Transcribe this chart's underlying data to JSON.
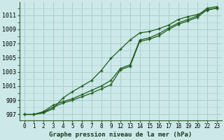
{
  "bg_color": "#cce8e8",
  "grid_color": "#aacece",
  "line_color": "#1e5c1e",
  "title": "Graphe pression niveau de la mer (hPa)",
  "ylim": [
    996.2,
    1012.8
  ],
  "yticks": [
    997,
    999,
    1001,
    1003,
    1005,
    1007,
    1009,
    1011
  ],
  "xlim": [
    -0.3,
    23.3
  ],
  "xtick_labels": [
    "0",
    "1",
    "2",
    "3",
    "4",
    "5",
    "6",
    "7",
    "8",
    "9",
    "12",
    "13",
    "14",
    "15",
    "16",
    "17",
    "18",
    "19",
    "20",
    "22",
    "23"
  ],
  "line1_hours": [
    0,
    1,
    2,
    3,
    4,
    5,
    6,
    7,
    8,
    9,
    12,
    13,
    14,
    15,
    16,
    17,
    18,
    19,
    20,
    22,
    23
  ],
  "line1_y": [
    997.0,
    997.0,
    997.3,
    998.0,
    998.6,
    999.0,
    999.5,
    1000.0,
    1000.6,
    1001.2,
    1003.3,
    1003.8,
    1007.3,
    1007.6,
    1008.1,
    1009.0,
    1009.7,
    1010.2,
    1010.7,
    1011.8,
    1012.0
  ],
  "line2_hours": [
    0,
    1,
    2,
    3,
    4,
    5,
    6,
    7,
    8,
    9,
    12,
    13,
    14,
    15,
    16,
    17,
    18,
    19,
    20,
    22,
    23
  ],
  "line2_y": [
    997.0,
    997.0,
    997.4,
    998.3,
    998.8,
    999.2,
    999.8,
    1000.4,
    1001.0,
    1001.8,
    1003.5,
    1004.0,
    1007.5,
    1007.8,
    1008.4,
    1009.2,
    1009.9,
    1010.4,
    1010.9,
    1012.0,
    1012.2
  ],
  "line3_hours": [
    0,
    1,
    2,
    3,
    4,
    5,
    6,
    7,
    8,
    9,
    12,
    13,
    14,
    15,
    16,
    17,
    18,
    19,
    20,
    22,
    23
  ],
  "line3_y": [
    997.0,
    997.0,
    997.2,
    997.8,
    999.3,
    1000.2,
    1001.0,
    1001.8,
    1003.2,
    1004.9,
    1006.2,
    1007.5,
    1008.5,
    1008.7,
    1009.1,
    1009.6,
    1010.4,
    1010.8,
    1011.1,
    1011.7,
    1012.0
  ]
}
